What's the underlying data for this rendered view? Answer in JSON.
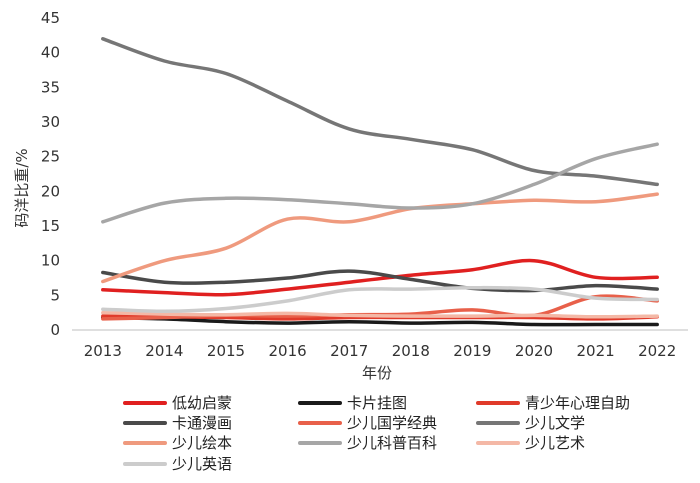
{
  "chart_data": {
    "type": "line",
    "xlabel": "年份",
    "ylabel": "码洋比重/%",
    "ylim": [
      0,
      45
    ],
    "yticks": [
      0,
      5,
      10,
      15,
      20,
      25,
      30,
      35,
      40,
      45
    ],
    "x": [
      "2013",
      "2014",
      "2015",
      "2016",
      "2017",
      "2018",
      "2019",
      "2020",
      "2021",
      "2022"
    ],
    "grid": false,
    "legend_position": "bottom",
    "series": [
      {
        "name": "低幼启蒙",
        "color": "#e02020",
        "values": [
          5.8,
          5.4,
          5.1,
          5.9,
          6.9,
          7.9,
          8.7,
          10.0,
          7.6,
          7.6
        ]
      },
      {
        "name": "卡片挂图",
        "color": "#1a1a1a",
        "values": [
          1.8,
          1.6,
          1.2,
          1.0,
          1.2,
          1.0,
          1.1,
          0.8,
          0.8,
          0.8
        ]
      },
      {
        "name": "青少年心理自助",
        "color": "#e03a2a",
        "values": [
          2.0,
          1.9,
          1.8,
          1.6,
          1.8,
          1.8,
          1.8,
          1.8,
          1.6,
          1.9
        ]
      },
      {
        "name": "卡通漫画",
        "color": "#4a4a4a",
        "values": [
          8.3,
          6.9,
          6.9,
          7.5,
          8.5,
          7.3,
          6.0,
          5.7,
          6.4,
          5.9
        ]
      },
      {
        "name": "少儿国学经典",
        "color": "#e8604a",
        "values": [
          1.6,
          1.8,
          2.1,
          2.0,
          2.2,
          2.3,
          2.9,
          2.1,
          4.8,
          4.2
        ]
      },
      {
        "name": "少儿文学",
        "color": "#767676",
        "values": [
          42.0,
          38.8,
          37.0,
          33.0,
          29.0,
          27.5,
          26.0,
          23.0,
          22.2,
          21.0
        ]
      },
      {
        "name": "少儿绘本",
        "color": "#ef9a7e",
        "values": [
          7.0,
          10.0,
          11.8,
          16.0,
          15.6,
          17.5,
          18.2,
          18.7,
          18.5,
          19.6
        ]
      },
      {
        "name": "少儿科普百科",
        "color": "#a6a6a6",
        "values": [
          15.6,
          18.3,
          19.0,
          18.8,
          18.2,
          17.6,
          18.2,
          21.0,
          24.7,
          26.8
        ]
      },
      {
        "name": "少儿艺术",
        "color": "#f4b8a6",
        "values": [
          2.5,
          2.3,
          2.2,
          2.4,
          2.1,
          2.0,
          2.0,
          2.1,
          1.9,
          2.0
        ]
      },
      {
        "name": "少儿英语",
        "color": "#cccccc",
        "values": [
          3.0,
          2.7,
          3.1,
          4.2,
          5.8,
          5.9,
          6.1,
          5.9,
          4.6,
          4.4
        ]
      }
    ]
  }
}
